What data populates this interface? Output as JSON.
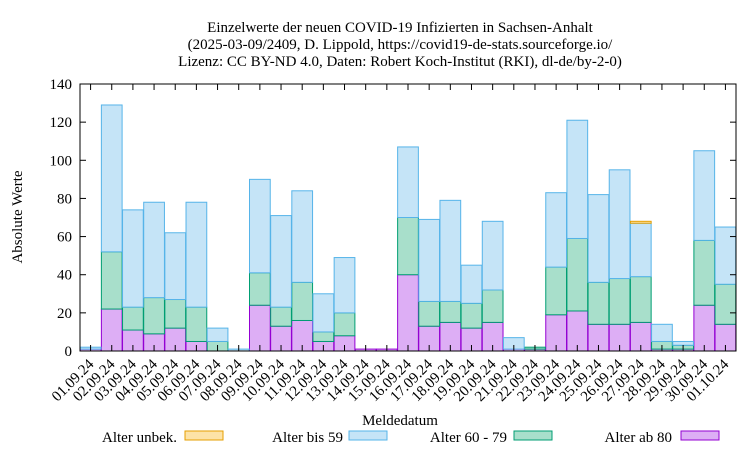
{
  "colors": {
    "unbek_fill": "#fde3a7",
    "unbek_stroke": "#e69f00",
    "bis59_fill": "#c5e4f7",
    "bis59_stroke": "#56b4e9",
    "60_79_fill": "#a8dfcb",
    "60_79_stroke": "#009e73",
    "ab80_fill": "#ddaef5",
    "ab80_stroke": "#9400d3"
  },
  "chart_data": {
    "type": "bar",
    "stacked": true,
    "title": [
      "Einzelwerte der neuen COVID-19 Infizierten in Sachsen-Anhalt",
      "(2025-03-09/2409, D. Lippold, https://covid19-de-stats.sourceforge.io/",
      "Lizenz: CC BY-ND 4.0, Daten: Robert Koch-Institut (RKI), dl-de/by-2-0)"
    ],
    "xlabel": "Meldedatum",
    "ylabel": "Absolute Werte",
    "ylim": [
      0,
      140
    ],
    "yticks": [
      0,
      20,
      40,
      60,
      80,
      100,
      120,
      140
    ],
    "grid": false,
    "legend_position": "bottom",
    "categories": [
      "01.09.24",
      "02.09.24",
      "03.09.24",
      "04.09.24",
      "05.09.24",
      "06.09.24",
      "07.09.24",
      "08.09.24",
      "09.09.24",
      "10.09.24",
      "11.09.24",
      "12.09.24",
      "13.09.24",
      "14.09.24",
      "15.09.24",
      "16.09.24",
      "17.09.24",
      "18.09.24",
      "19.09.24",
      "20.09.24",
      "21.09.24",
      "22.09.24",
      "23.09.24",
      "24.09.24",
      "25.09.24",
      "26.09.24",
      "27.09.24",
      "28.09.24",
      "29.09.24",
      "30.09.24",
      "01.10.24"
    ],
    "series": [
      {
        "name": "Alter ab 80",
        "values": [
          1,
          22,
          11,
          9,
          12,
          5,
          0,
          0,
          24,
          13,
          16,
          5,
          8,
          1,
          1,
          40,
          13,
          15,
          12,
          15,
          1,
          1,
          19,
          21,
          14,
          14,
          15,
          1,
          1,
          24,
          14
        ]
      },
      {
        "name": "Alter 60 - 79",
        "values": [
          0,
          30,
          12,
          19,
          15,
          18,
          5,
          0,
          17,
          10,
          20,
          5,
          12,
          0,
          0,
          30,
          13,
          11,
          13,
          17,
          0,
          1,
          25,
          38,
          22,
          24,
          24,
          4,
          2,
          34,
          21
        ]
      },
      {
        "name": "Alter bis 59",
        "values": [
          1,
          77,
          51,
          50,
          35,
          55,
          7,
          1,
          49,
          48,
          48,
          20,
          29,
          0,
          0,
          37,
          43,
          53,
          20,
          36,
          6,
          0,
          39,
          62,
          46,
          57,
          28,
          9,
          2,
          47,
          30
        ]
      },
      {
        "name": "Alter unbek.",
        "values": [
          0,
          0,
          0,
          0,
          0,
          0,
          0,
          0,
          0,
          0,
          0,
          0,
          0,
          0,
          0,
          0,
          0,
          0,
          0,
          0,
          0,
          0,
          0,
          0,
          0,
          0,
          1,
          0,
          0,
          0,
          0
        ]
      }
    ]
  }
}
